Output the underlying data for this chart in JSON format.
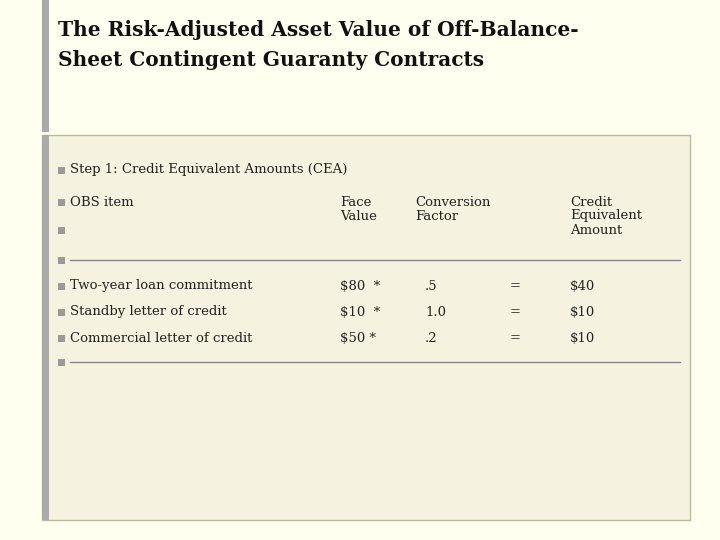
{
  "title_line1": "The Risk-Adjusted Asset Value of Off-Balance-",
  "title_line2": "Sheet Contingent Guaranty Contracts",
  "bg_outer": "#fffff0",
  "bg_inner": "#f5f3e0",
  "left_bar_color": "#aaaaaa",
  "bullet_color": "#999999",
  "step1_text": "Step 1: Credit Equivalent Amounts (CEA)",
  "header_col1": "OBS item",
  "header_col2_line1": "Face",
  "header_col2_line2": "Value",
  "header_col3_line1": "Conversion",
  "header_col3_line2": "Factor",
  "header_col4_line1": "Credit",
  "header_col4_line2": "Equivalent",
  "header_col4_line3": "Amount",
  "rows": [
    {
      "item": "Two-year loan commitment",
      "face": "$80  *",
      "conv": ".5",
      "eq": "=",
      "credit": "$40"
    },
    {
      "item": "Standby letter of credit",
      "face": "$10  *",
      "conv": "1.0",
      "eq": "=",
      "credit": "$10"
    },
    {
      "item": "Commercial letter of credit",
      "face": "$50 *",
      "conv": ".2",
      "eq": "=",
      "credit": "$10"
    }
  ],
  "text_color": "#222222",
  "line_color": "#888888",
  "title_color": "#111111",
  "outer_border_color": "#ccccaa",
  "inner_border_color": "#bbbb99"
}
